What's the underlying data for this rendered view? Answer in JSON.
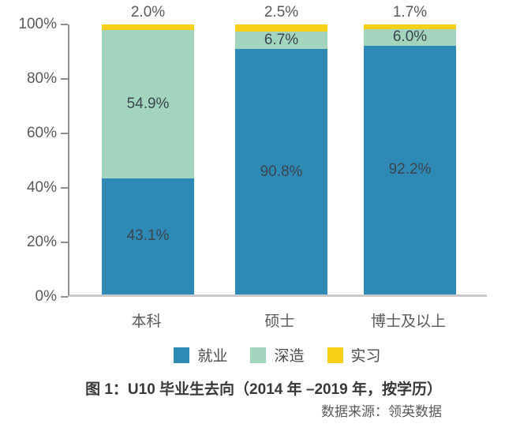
{
  "chart_data": {
    "type": "bar",
    "stacked": true,
    "percent_stacked": true,
    "categories": [
      "本科",
      "硕士",
      "博士及以上"
    ],
    "series": [
      {
        "name": "就业",
        "color": "#2E8AB4",
        "values": [
          43.1,
          90.8,
          92.2
        ],
        "labels": [
          "43.1%",
          "90.8%",
          "92.2%"
        ],
        "label_placement": "inside"
      },
      {
        "name": "深造",
        "color": "#A2D4BE",
        "values": [
          54.9,
          6.7,
          6.0
        ],
        "labels": [
          "54.9%",
          "6.7%",
          "6.0%"
        ],
        "label_placement": "inside"
      },
      {
        "name": "实习",
        "color": "#F9D015",
        "values": [
          2.0,
          2.5,
          1.7
        ],
        "labels": [
          "2.0%",
          "2.5%",
          "1.7%"
        ],
        "label_placement": "above"
      }
    ],
    "y_ticks": [
      "100%",
      "80%",
      "60%",
      "40%",
      "20%",
      "0%"
    ],
    "ylim": [
      0,
      100
    ],
    "grid": false,
    "legend_position": "bottom",
    "title": "图 1：U10 毕业生去向（2014 年 –2019 年，按学历）",
    "source": "数据来源：领英数据"
  },
  "colors": {
    "axis_line": "#8f8f8f",
    "baseline": "#c9c9c9",
    "tick_label": "#58595b",
    "bar_label": "#3b454e",
    "title_text": "#383838"
  }
}
